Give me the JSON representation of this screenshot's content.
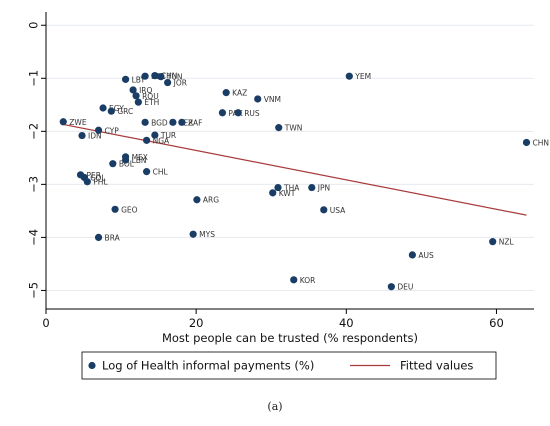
{
  "chart_data": {
    "type": "scatter",
    "xlabel": "Most people can be trusted (% respondents)",
    "ylabel": "",
    "xlim": [
      0,
      65
    ],
    "ylim": [
      -5.35,
      0.25
    ],
    "x_ticks": [
      0,
      20,
      40,
      60
    ],
    "y_ticks": [
      0,
      -1,
      -2,
      -3,
      -4,
      -5
    ],
    "x_tick_labels": [
      "0",
      "20",
      "40",
      "60"
    ],
    "y_tick_labels": [
      "0",
      "−1",
      "−2",
      "−3",
      "−4",
      "−5"
    ],
    "grid": "horizontal",
    "legend_position": "bottom",
    "series": [
      {
        "name": "Log of Health informal payments (%)",
        "kind": "markers",
        "color": "#1a3d66",
        "points": [
          {
            "label": "ZWE",
            "x": 2.3,
            "y": -1.82
          },
          {
            "label": "IDN",
            "x": 4.8,
            "y": -2.08
          },
          {
            "label": "CYP",
            "x": 7.0,
            "y": -1.98
          },
          {
            "label": "EGY",
            "x": 7.6,
            "y": -1.56
          },
          {
            "label": "GRC",
            "x": 8.7,
            "y": -1.62
          },
          {
            "label": "LBY",
            "x": 10.6,
            "y": -1.02
          },
          {
            "label": "IRQ",
            "x": 11.6,
            "y": -1.22
          },
          {
            "label": "ROU",
            "x": 12.0,
            "y": -1.33
          },
          {
            "label": "ETH",
            "x": 12.3,
            "y": -1.45
          },
          {
            "label": "PSE",
            "x": 13.2,
            "y": -0.96
          },
          {
            "label": "CHN",
            "x": 14.5,
            "y": -0.95
          },
          {
            "label": "TUN",
            "x": 15.3,
            "y": -0.97
          },
          {
            "label": "JOR",
            "x": 16.2,
            "y": -1.08
          },
          {
            "label": "BGD",
            "x": 13.2,
            "y": -1.83
          },
          {
            "label": "PER",
            "x": 16.9,
            "y": -1.83
          },
          {
            "label": "ZAF",
            "x": 18.1,
            "y": -1.83
          },
          {
            "label": "TUR",
            "x": 14.5,
            "y": -2.07
          },
          {
            "label": "NGA",
            "x": 13.4,
            "y": -2.17
          },
          {
            "label": "KAZ",
            "x": 24.0,
            "y": -1.27
          },
          {
            "label": "VNM",
            "x": 28.2,
            "y": -1.39
          },
          {
            "label": "PAK",
            "x": 23.5,
            "y": -1.65
          },
          {
            "label": "RUS",
            "x": 25.6,
            "y": -1.65
          },
          {
            "label": "TWN",
            "x": 31.0,
            "y": -1.93
          },
          {
            "label": "YEM",
            "x": 40.4,
            "y": -0.96
          },
          {
            "label": "CHN",
            "x": 64.0,
            "y": -2.21
          },
          {
            "label": "MEX",
            "x": 10.6,
            "y": -2.48
          },
          {
            "label": "BOL",
            "x": 8.9,
            "y": -2.61
          },
          {
            "label": "LBN",
            "x": 10.6,
            "y": -2.54
          },
          {
            "label": "CHL",
            "x": 13.4,
            "y": -2.76
          },
          {
            "label": "PER",
            "x": 4.6,
            "y": -2.82
          },
          {
            "label": "COL",
            "x": 5.1,
            "y": -2.87
          },
          {
            "label": "PHL",
            "x": 5.5,
            "y": -2.95
          },
          {
            "label": "THA",
            "x": 30.9,
            "y": -3.06
          },
          {
            "label": "KWT",
            "x": 30.2,
            "y": -3.16
          },
          {
            "label": "JPN",
            "x": 35.4,
            "y": -3.06
          },
          {
            "label": "USA",
            "x": 37.0,
            "y": -3.48
          },
          {
            "label": "ARG",
            "x": 20.1,
            "y": -3.29
          },
          {
            "label": "GEO",
            "x": 9.2,
            "y": -3.47
          },
          {
            "label": "MYS",
            "x": 19.6,
            "y": -3.94
          },
          {
            "label": "BRA",
            "x": 7.0,
            "y": -4.0
          },
          {
            "label": "AUS",
            "x": 48.8,
            "y": -4.33
          },
          {
            "label": "NZL",
            "x": 59.5,
            "y": -4.08
          },
          {
            "label": "KOR",
            "x": 33.0,
            "y": -4.8
          },
          {
            "label": "DEU",
            "x": 46.0,
            "y": -4.93
          }
        ]
      },
      {
        "name": "Fitted values",
        "kind": "line",
        "color": "#a83a3a",
        "points": [
          {
            "x": 2.3,
            "y": -1.87
          },
          {
            "x": 64.0,
            "y": -3.58
          }
        ]
      }
    ]
  },
  "caption": "(a)",
  "colors": {
    "plot_background": "#ffffff",
    "grid": "#e6eaef",
    "axis": "#000000"
  }
}
